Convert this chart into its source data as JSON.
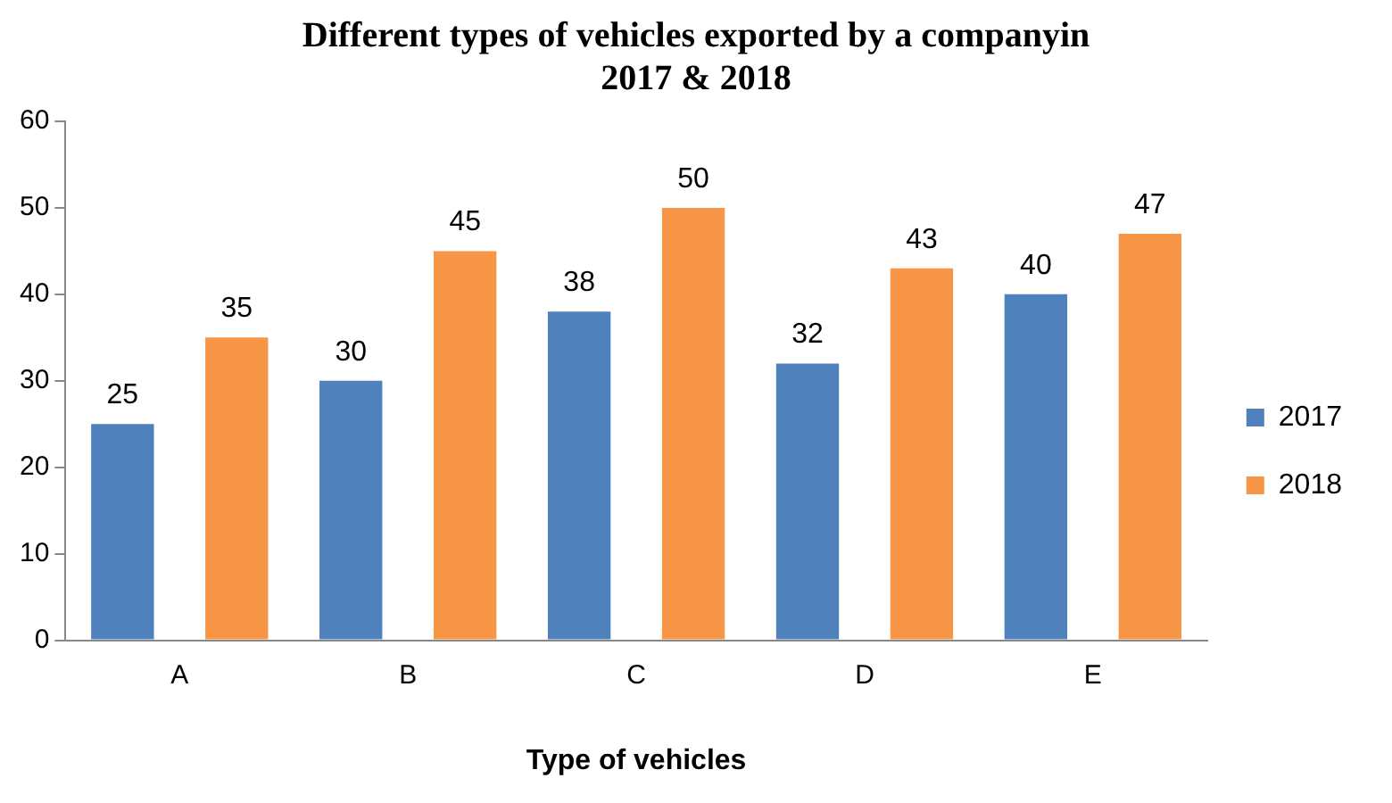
{
  "chart_data": {
    "type": "bar",
    "title": "Different types of vehicles exported by a companyin 2017 & 2018",
    "xlabel": "Type of vehicles",
    "categories": [
      "A",
      "B",
      "C",
      "D",
      "E"
    ],
    "series": [
      {
        "name": "2017",
        "color": "#4f81bd",
        "values": [
          25,
          30,
          38,
          32,
          40
        ]
      },
      {
        "name": "2018",
        "color": "#f79646",
        "values": [
          35,
          45,
          50,
          43,
          47
        ]
      }
    ],
    "ylim": [
      0,
      60
    ],
    "yticks": [
      0,
      10,
      20,
      30,
      40,
      50,
      60
    ],
    "grid": false,
    "legend": "right",
    "data_labels": true
  }
}
